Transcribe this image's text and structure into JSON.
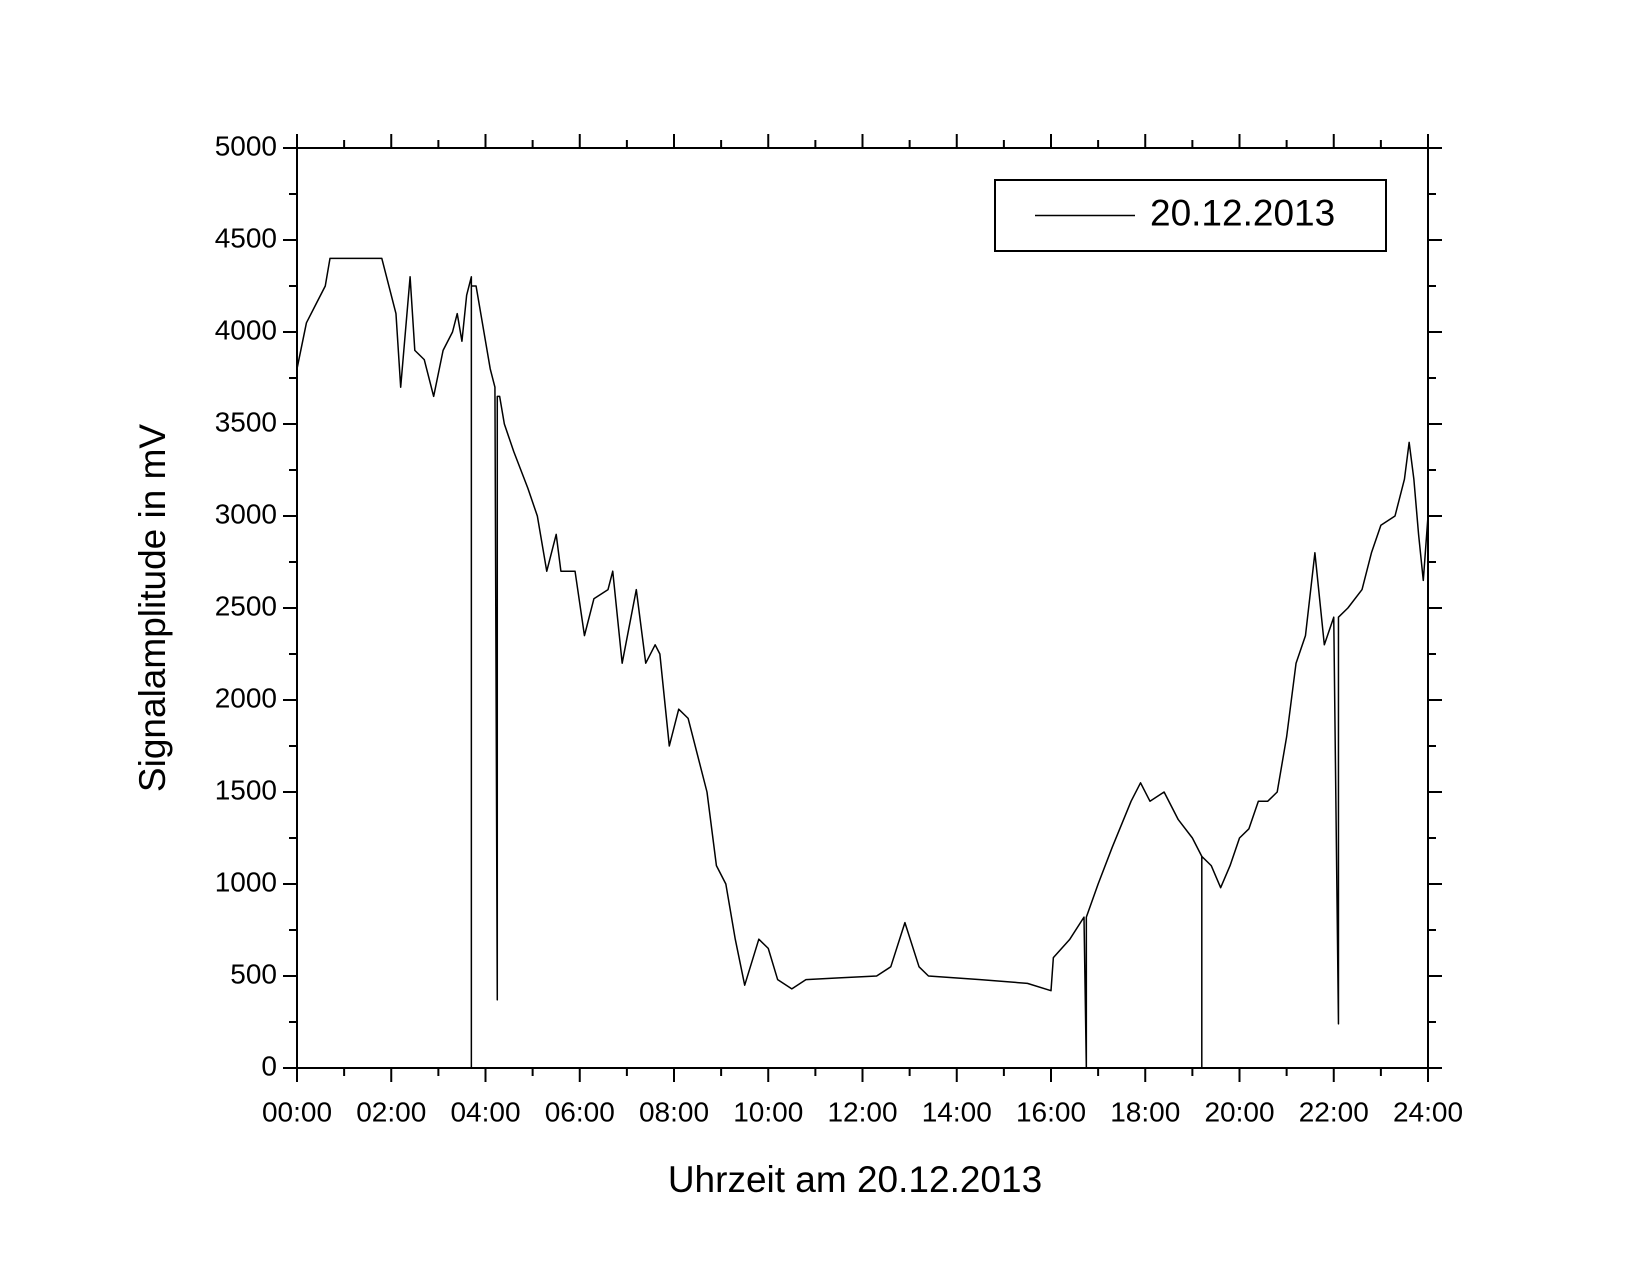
{
  "chart_data": {
    "type": "line",
    "xlabel": "Uhrzeit am 20.12.2013",
    "ylabel": "Signalamplitude in mV",
    "x": [
      0,
      0.2,
      0.4,
      0.6,
      0.7,
      1.8,
      1.9,
      2.1,
      2.2,
      2.4,
      2.5,
      2.7,
      2.9,
      3.1,
      3.3,
      3.4,
      3.5,
      3.6,
      3.7,
      3.7,
      3.7,
      3.8,
      3.9,
      4.1,
      4.2,
      4.25,
      4.25,
      4.25,
      4.3,
      4.4,
      4.6,
      4.9,
      5.1,
      5.3,
      5.5,
      5.6,
      5.9,
      6.1,
      6.3,
      6.6,
      6.7,
      6.9,
      7.2,
      7.4,
      7.6,
      7.7,
      7.9,
      8.1,
      8.3,
      8.5,
      8.7,
      8.9,
      9.1,
      9.3,
      9.5,
      9.8,
      10.0,
      10.2,
      10.5,
      10.8,
      11.5,
      12.3,
      12.6,
      12.9,
      13.2,
      13.4,
      14.5,
      15.5,
      16.0,
      16.05,
      16.4,
      16.7,
      16.75,
      16.75,
      16.75,
      17.0,
      17.3,
      17.7,
      17.9,
      18.1,
      18.4,
      18.7,
      19.0,
      19.2,
      19.2,
      19.2,
      19.4,
      19.6,
      19.8,
      20.0,
      20.2,
      20.4,
      20.6,
      20.8,
      21.0,
      21.2,
      21.4,
      21.6,
      21.8,
      22.0,
      22.1,
      22.1,
      22.1,
      22.3,
      22.6,
      22.8,
      23.0,
      23.3,
      23.5,
      23.6,
      23.7,
      23.8,
      23.9,
      24.0
    ],
    "series": [
      {
        "name": "20.12.2013",
        "color": "#000000",
        "values": [
          3800,
          4050,
          4150,
          4250,
          4400,
          4400,
          4300,
          4100,
          3700,
          4300,
          3900,
          3850,
          3650,
          3900,
          4000,
          4100,
          3950,
          4200,
          4300,
          0,
          4250,
          4250,
          4100,
          3800,
          3700,
          370,
          3650,
          3650,
          3650,
          3500,
          3350,
          3150,
          3000,
          2700,
          2900,
          2700,
          2700,
          2350,
          2550,
          2600,
          2700,
          2200,
          2600,
          2200,
          2300,
          2250,
          1750,
          1950,
          1900,
          1700,
          1500,
          1100,
          1000,
          700,
          450,
          700,
          650,
          480,
          430,
          480,
          490,
          500,
          550,
          790,
          550,
          500,
          480,
          460,
          420,
          600,
          700,
          820,
          0,
          820,
          820,
          1000,
          1200,
          1450,
          1550,
          1450,
          1500,
          1350,
          1250,
          1150,
          0,
          1150,
          1100,
          980,
          1100,
          1250,
          1300,
          1450,
          1450,
          1500,
          1800,
          2200,
          2350,
          2800,
          2300,
          2450,
          240,
          2450,
          2450,
          2500,
          2600,
          2800,
          2950,
          3000,
          3200,
          3400,
          3200,
          2900,
          2650,
          3000
        ]
      }
    ],
    "xlim": [
      0,
      24
    ],
    "xticks": [
      {
        "value": 0,
        "label": "00:00"
      },
      {
        "value": 2,
        "label": "02:00"
      },
      {
        "value": 4,
        "label": "04:00"
      },
      {
        "value": 6,
        "label": "06:00"
      },
      {
        "value": 8,
        "label": "08:00"
      },
      {
        "value": 10,
        "label": "10:00"
      },
      {
        "value": 12,
        "label": "12:00"
      },
      {
        "value": 14,
        "label": "14:00"
      },
      {
        "value": 16,
        "label": "16:00"
      },
      {
        "value": 18,
        "label": "18:00"
      },
      {
        "value": 20,
        "label": "20:00"
      },
      {
        "value": 22,
        "label": "22:00"
      },
      {
        "value": 24,
        "label": "24:00"
      }
    ],
    "xminorticks": [
      1,
      3,
      5,
      7,
      9,
      11,
      13,
      15,
      17,
      19,
      21,
      23
    ],
    "ylim": [
      0,
      5000
    ],
    "yticks": [
      0,
      500,
      1000,
      1500,
      2000,
      2500,
      3000,
      3500,
      4000,
      4500,
      5000
    ],
    "yminorticks": [
      250,
      750,
      1250,
      1750,
      2250,
      2750,
      3250,
      3750,
      4250,
      4750
    ],
    "legend": "upper right"
  }
}
